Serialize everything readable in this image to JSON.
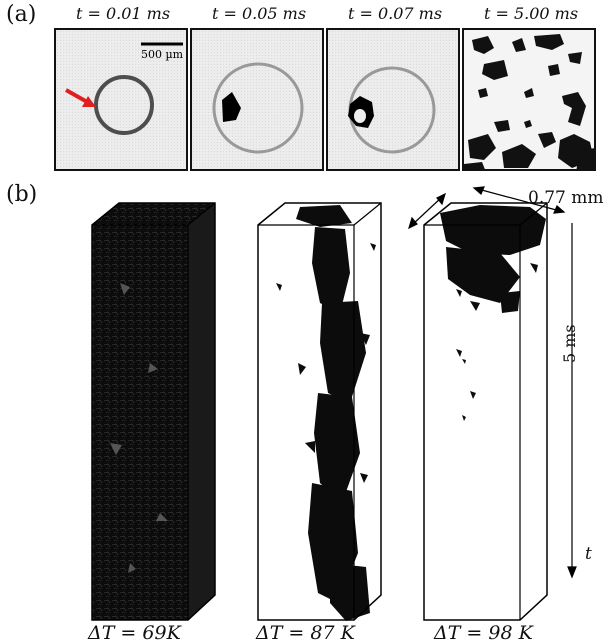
{
  "panel_a": {
    "label": "(a)",
    "time_labels": [
      "t = 0.01 ms",
      "t = 0.05 ms",
      "t = 0.07 ms",
      "t = 5.00 ms"
    ],
    "scale_bar": "500 µm",
    "arrow_color": "#e02020"
  },
  "panel_b": {
    "label": "(b)",
    "width_label": "0.77 mm",
    "time_span_label": "5 ms",
    "time_axis_label": "t",
    "delta_labels": [
      "ΔT = 69K",
      "ΔT = 87 K",
      "ΔT = 98 K"
    ]
  }
}
